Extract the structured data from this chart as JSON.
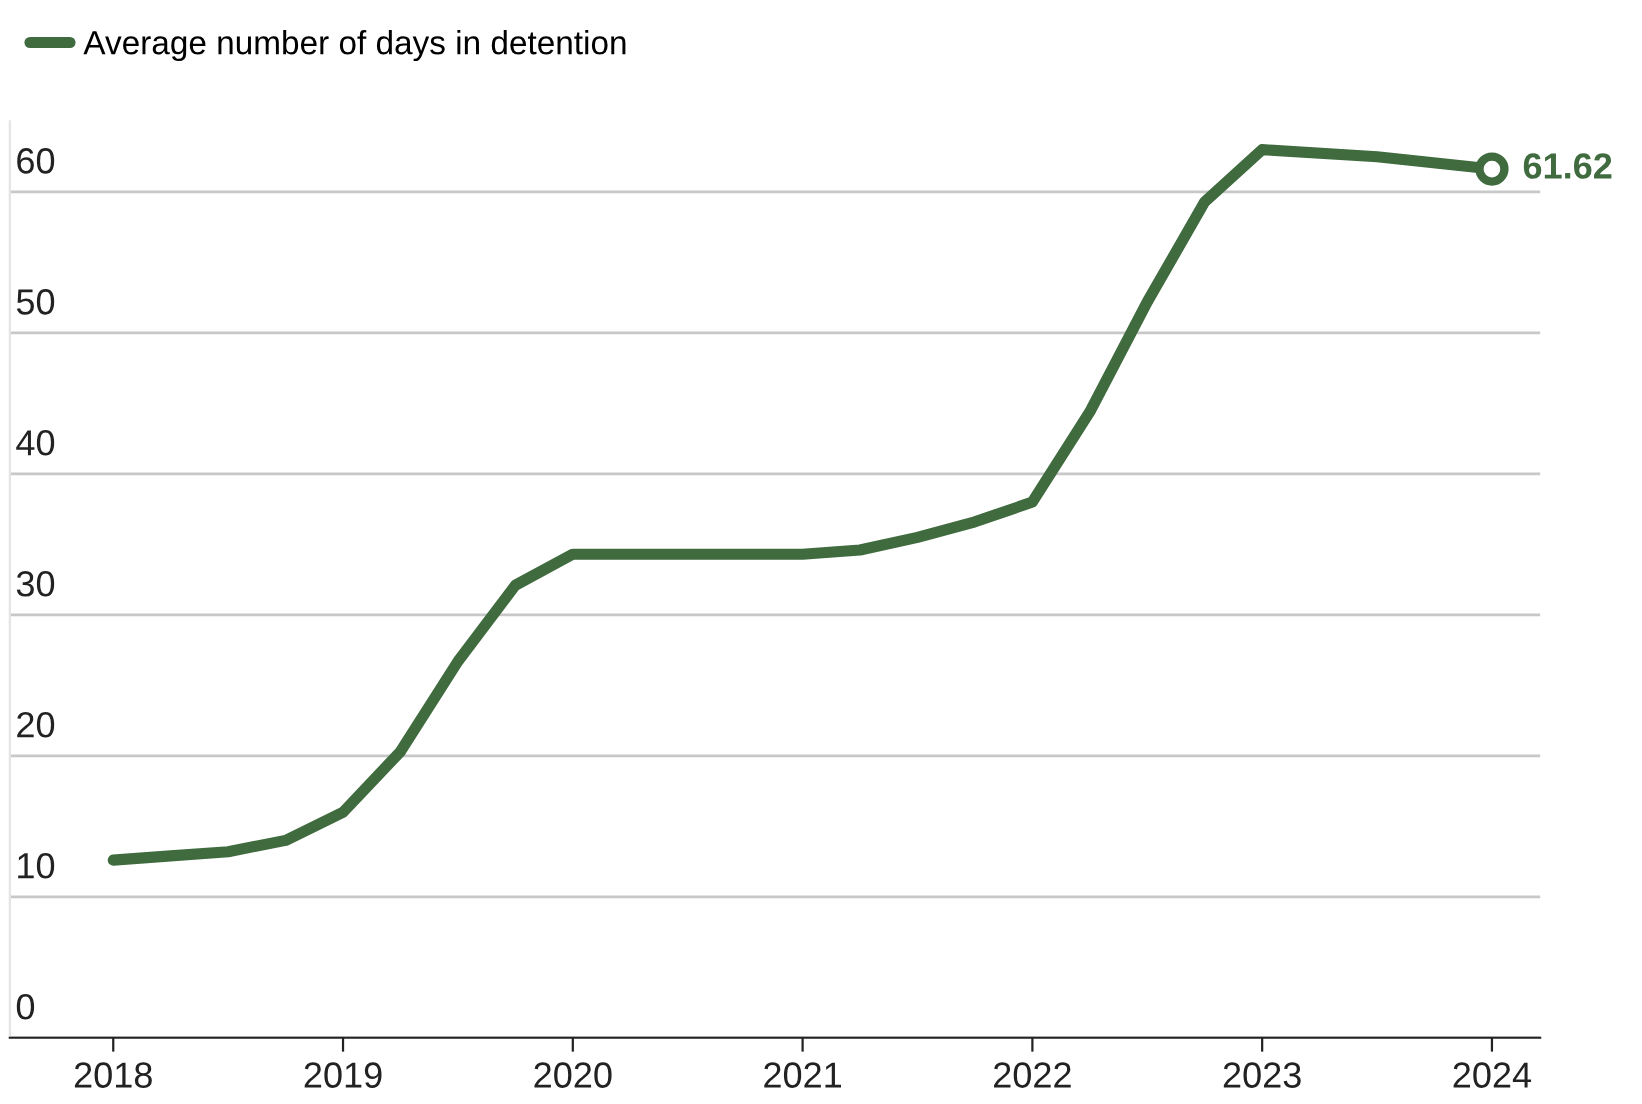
{
  "chart_data": {
    "type": "line",
    "x": [
      2018,
      2018.25,
      2018.5,
      2018.75,
      2019,
      2019.25,
      2019.5,
      2019.75,
      2020,
      2020.5,
      2021,
      2021.25,
      2021.5,
      2021.75,
      2022,
      2022.25,
      2022.5,
      2022.75,
      2023,
      2023.5,
      2024
    ],
    "series": [
      {
        "name": "Average number of days in detention",
        "color": "#3f6b3f",
        "values": [
          12.6,
          12.9,
          13.2,
          14.0,
          16.0,
          20.3,
          26.7,
          32.1,
          34.3,
          34.3,
          34.3,
          34.6,
          35.5,
          36.6,
          38.0,
          44.4,
          52.2,
          59.3,
          63.0,
          62.5,
          61.62
        ],
        "value_labels": [
          null,
          null,
          null,
          null,
          null,
          null,
          null,
          null,
          null,
          null,
          null,
          null,
          null,
          null,
          null,
          null,
          null,
          null,
          null,
          null,
          "61.62"
        ]
      }
    ],
    "xlim": [
      2017.55,
      2024.21
    ],
    "xticks": [
      2018,
      2019,
      2020,
      2021,
      2022,
      2023,
      2024
    ],
    "ylim": [
      0,
      65
    ],
    "yticks": [
      0,
      10,
      20,
      30,
      40,
      50,
      60
    ],
    "grid": "y",
    "legend": "top left",
    "line_style": "solid"
  }
}
